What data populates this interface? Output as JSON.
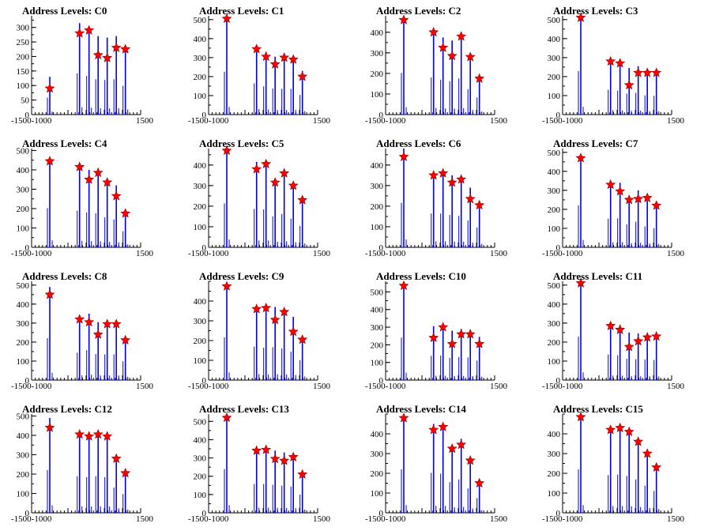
{
  "figure": {
    "x_ticks": [
      -1500,
      -1000,
      1500
    ],
    "x_tick_labels_joined": "-1500-1000",
    "colors": {
      "bars": "#0000dd",
      "markers": "#ff0000",
      "marker_edge": "#8b0000",
      "axes": "#000000"
    }
  },
  "chart_data": [
    {
      "type": "bar",
      "title": "Address Levels: C0",
      "ylim": [
        0,
        340
      ],
      "yticks": [
        0,
        50,
        100,
        150,
        200,
        250,
        300
      ],
      "x": [
        -1000,
        -180,
        80,
        330,
        580,
        830,
        1080
      ],
      "values": [
        130,
        315,
        295,
        270,
        265,
        270,
        220
      ],
      "markers": [
        90,
        280,
        290,
        205,
        195,
        230,
        225
      ]
    },
    {
      "type": "bar",
      "title": "Address Levels: C1",
      "ylim": [
        0,
        520
      ],
      "yticks": [
        0,
        100,
        200,
        300,
        400,
        500
      ],
      "x": [
        -1000,
        -180,
        80,
        330,
        580,
        830,
        1080
      ],
      "values": [
        500,
        365,
        330,
        305,
        300,
        300,
        230
      ],
      "markers": [
        505,
        345,
        305,
        265,
        300,
        290,
        200
      ]
    },
    {
      "type": "bar",
      "title": "Address Levels: C2",
      "ylim": [
        0,
        480
      ],
      "yticks": [
        0,
        100,
        200,
        300,
        400
      ],
      "x": [
        -1000,
        -180,
        80,
        330,
        580,
        830,
        1080
      ],
      "values": [
        450,
        400,
        375,
        360,
        390,
        275,
        185
      ],
      "markers": [
        460,
        400,
        325,
        285,
        380,
        280,
        175
      ]
    },
    {
      "type": "bar",
      "title": "Address Levels: C3",
      "ylim": [
        0,
        520
      ],
      "yticks": [
        0,
        100,
        200,
        300,
        400,
        500
      ],
      "x": [
        -1000,
        -180,
        80,
        330,
        580,
        830,
        1080
      ],
      "values": [
        510,
        290,
        280,
        245,
        255,
        225,
        220
      ],
      "markers": [
        510,
        280,
        270,
        155,
        220,
        220,
        220
      ]
    },
    {
      "type": "bar",
      "title": "Address Levels: C4",
      "ylim": [
        0,
        510
      ],
      "yticks": [
        0,
        100,
        200,
        300,
        400,
        500
      ],
      "x": [
        -1000,
        -180,
        80,
        330,
        580,
        830,
        1080
      ],
      "values": [
        450,
        420,
        400,
        390,
        345,
        320,
        185
      ],
      "markers": [
        445,
        415,
        350,
        385,
        335,
        265,
        175
      ]
    },
    {
      "type": "bar",
      "title": "Address Levels: C5",
      "ylim": [
        0,
        480
      ],
      "yticks": [
        0,
        100,
        200,
        300,
        400
      ],
      "x": [
        -1000,
        -180,
        80,
        330,
        580,
        830,
        1080
      ],
      "values": [
        475,
        415,
        410,
        335,
        360,
        310,
        230
      ],
      "markers": [
        470,
        380,
        405,
        315,
        360,
        300,
        230
      ]
    },
    {
      "type": "bar",
      "title": "Address Levels: C6",
      "ylim": [
        0,
        480
      ],
      "yticks": [
        0,
        100,
        200,
        300,
        400
      ],
      "x": [
        -1000,
        -180,
        80,
        330,
        580,
        830,
        1080
      ],
      "values": [
        480,
        365,
        365,
        350,
        340,
        290,
        215
      ],
      "markers": [
        440,
        350,
        360,
        315,
        330,
        235,
        205
      ]
    },
    {
      "type": "bar",
      "title": "Address Levels: C7",
      "ylim": [
        0,
        520
      ],
      "yticks": [
        0,
        100,
        200,
        300,
        400,
        500
      ],
      "x": [
        -1000,
        -180,
        80,
        330,
        580,
        830,
        1080
      ],
      "values": [
        490,
        335,
        340,
        270,
        300,
        245,
        225
      ],
      "markers": [
        470,
        330,
        295,
        250,
        255,
        260,
        220
      ]
    },
    {
      "type": "bar",
      "title": "Address Levels: C8",
      "ylim": [
        0,
        520
      ],
      "yticks": [
        0,
        100,
        200,
        300,
        400,
        500
      ],
      "x": [
        -1000,
        -180,
        80,
        330,
        580,
        830,
        1080
      ],
      "values": [
        490,
        320,
        350,
        305,
        300,
        300,
        220
      ],
      "markers": [
        450,
        320,
        305,
        240,
        295,
        295,
        210
      ]
    },
    {
      "type": "bar",
      "title": "Address Levels: C9",
      "ylim": [
        0,
        500
      ],
      "yticks": [
        0,
        100,
        200,
        300,
        400
      ],
      "x": [
        -1000,
        -180,
        80,
        330,
        580,
        830,
        1080
      ],
      "values": [
        480,
        375,
        365,
        370,
        355,
        320,
        225
      ],
      "markers": [
        475,
        360,
        365,
        305,
        345,
        245,
        205
      ]
    },
    {
      "type": "bar",
      "title": "Address Levels: C10",
      "ylim": [
        0,
        560
      ],
      "yticks": [
        0,
        100,
        200,
        300,
        400,
        500
      ],
      "x": [
        -1000,
        -180,
        80,
        330,
        580,
        830,
        1080
      ],
      "values": [
        535,
        305,
        310,
        280,
        290,
        285,
        245
      ],
      "markers": [
        535,
        240,
        300,
        205,
        260,
        260,
        205
      ]
    },
    {
      "type": "bar",
      "title": "Address Levels: C11",
      "ylim": [
        0,
        520
      ],
      "yticks": [
        0,
        100,
        200,
        300,
        400,
        500
      ],
      "x": [
        -1000,
        -180,
        80,
        330,
        580,
        830,
        1080
      ],
      "values": [
        510,
        300,
        290,
        250,
        245,
        240,
        235
      ],
      "markers": [
        510,
        285,
        265,
        175,
        205,
        225,
        230
      ]
    },
    {
      "type": "bar",
      "title": "Address Levels: C12",
      "ylim": [
        0,
        510
      ],
      "yticks": [
        0,
        100,
        200,
        300,
        400,
        500
      ],
      "x": [
        -1000,
        -180,
        80,
        330,
        580,
        830,
        1080
      ],
      "values": [
        490,
        420,
        410,
        420,
        410,
        290,
        215
      ],
      "markers": [
        440,
        405,
        395,
        405,
        395,
        280,
        205
      ]
    },
    {
      "type": "bar",
      "title": "Address Levels: C13",
      "ylim": [
        0,
        540
      ],
      "yticks": [
        0,
        100,
        200,
        300,
        400,
        500
      ],
      "x": [
        -1000,
        -180,
        80,
        330,
        580,
        830,
        1080
      ],
      "values": [
        530,
        350,
        350,
        340,
        330,
        320,
        220
      ],
      "markers": [
        520,
        340,
        345,
        295,
        285,
        305,
        210
      ]
    },
    {
      "type": "bar",
      "title": "Address Levels: C14",
      "ylim": [
        0,
        500
      ],
      "yticks": [
        0,
        100,
        200,
        300,
        400
      ],
      "x": [
        -1000,
        -180,
        80,
        330,
        580,
        830,
        1080
      ],
      "values": [
        490,
        450,
        440,
        345,
        375,
        275,
        165
      ],
      "markers": [
        480,
        420,
        435,
        325,
        345,
        265,
        150
      ]
    },
    {
      "type": "bar",
      "title": "Address Levels: C15",
      "ylim": [
        0,
        500
      ],
      "yticks": [
        0,
        100,
        200,
        300,
        400
      ],
      "x": [
        -1000,
        -180,
        80,
        330,
        580,
        830,
        1080
      ],
      "values": [
        490,
        425,
        430,
        415,
        375,
        305,
        245
      ],
      "markers": [
        485,
        420,
        430,
        410,
        360,
        300,
        230
      ]
    }
  ]
}
